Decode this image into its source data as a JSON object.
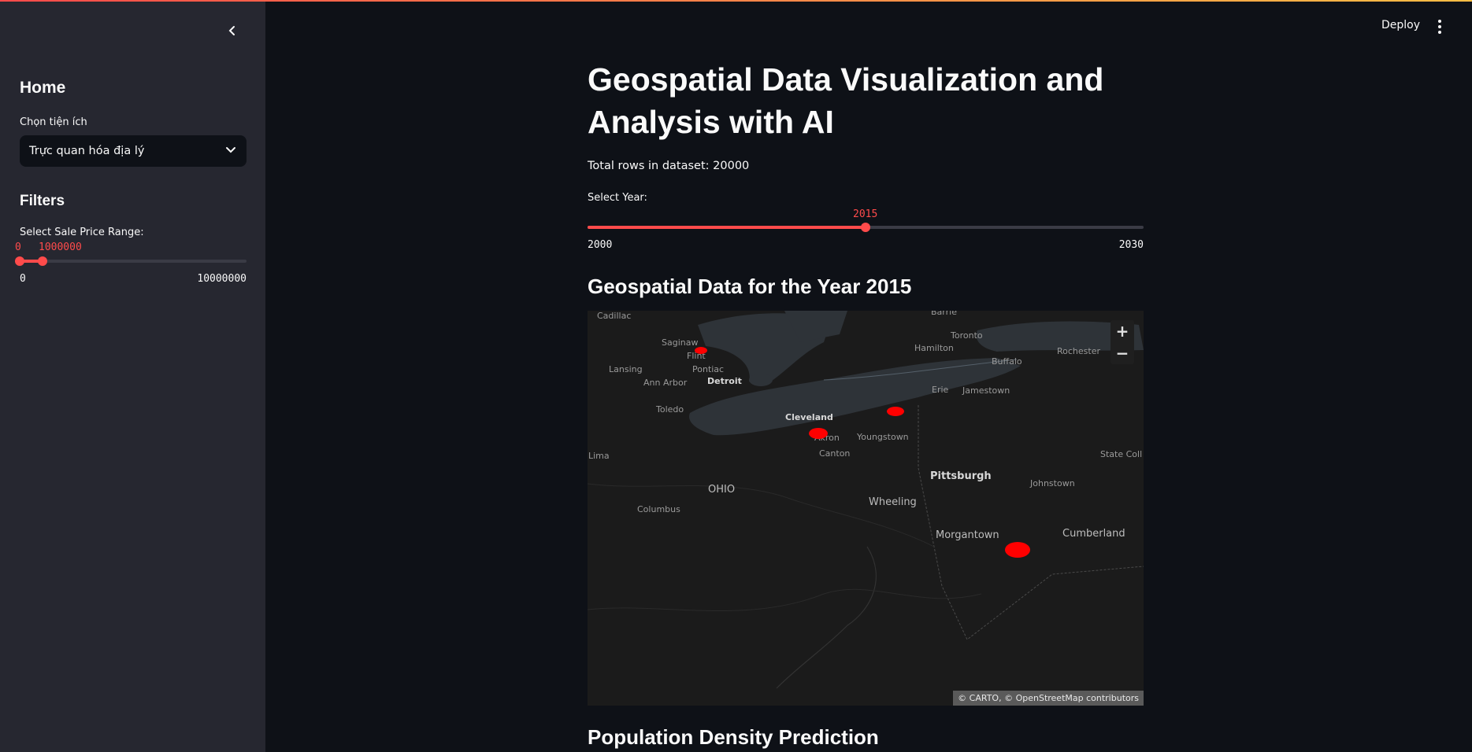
{
  "sidebar": {
    "home_title": "Home",
    "utility_label": "Chọn tiện ích",
    "utility_selected": "Trực quan hóa địa lý",
    "filters_title": "Filters",
    "price_label": "Select Sale Price Range:",
    "price_range_low": "0",
    "price_range_high": "1000000",
    "price_min": "0",
    "price_max": "10000000",
    "price_range_fraction": [
      0,
      0.1
    ]
  },
  "header": {
    "deploy_label": "Deploy"
  },
  "main": {
    "title": "Geospatial Data Visualization and Analysis with AI",
    "total_rows": "Total rows in dataset: 20000",
    "year_label": "Select Year:",
    "year_value": "2015",
    "year_min": "2000",
    "year_max": "2030",
    "year_fraction": 0.5,
    "map_heading": "Geospatial Data for the Year 2015",
    "next_heading": "Population Density Prediction"
  },
  "map": {
    "attribution": "© CARTO, © OpenStreetMap contributors",
    "zoom_in": "+",
    "zoom_out": "−",
    "labels": {
      "cadillac": "Cadillac",
      "barrie": "Barrie",
      "saginaw": "Saginaw",
      "toronto": "Toronto",
      "flint": "Flint",
      "hamilton": "Hamilton",
      "rochester": "Rochester",
      "lansing": "Lansing",
      "pontiac": "Pontiac",
      "buffalo": "Buffalo",
      "detroit": "Detroit",
      "annarbor": "Ann Arbor",
      "erie": "Erie",
      "jamestown": "Jamestown",
      "toledo": "Toledo",
      "cleveland": "Cleveland",
      "akron": "Akron",
      "youngstown": "Youngstown",
      "canton": "Canton",
      "lima": "Lima",
      "statecollege": "State Coll",
      "pittsburgh": "Pittsburgh",
      "ohio": "OHIO",
      "johnstown": "Johnstown",
      "columbus": "Columbus",
      "wheeling": "Wheeling",
      "cumberland": "Cumberland",
      "morgantown": "Morgantown"
    },
    "point_color": "#ff0000"
  },
  "colors": {
    "accent": "#ff4b4b",
    "sidebar_bg": "#262730",
    "main_bg": "#0e1117"
  }
}
